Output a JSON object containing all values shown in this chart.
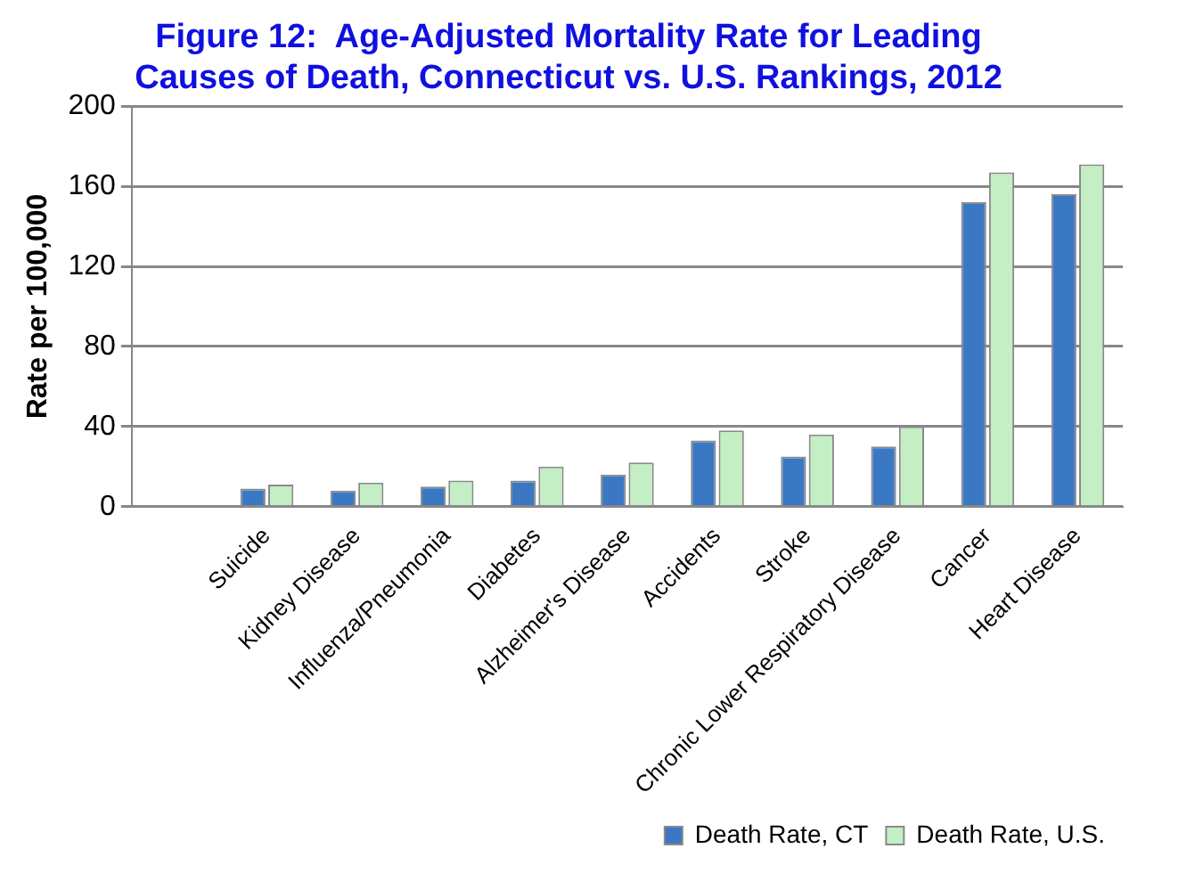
{
  "chart_data": {
    "type": "bar",
    "title": [
      "Figure 12:  Age-Adjusted Mortality Rate for Leading",
      "Causes of Death, Connecticut vs. U.S. Rankings, 2012"
    ],
    "ylabel": "Rate per 100,000",
    "categories": [
      null,
      "Suicide",
      "Kidney Disease",
      "Influenza/Pneumonia",
      "Diabetes",
      "Alzheimer's Disease",
      "Accidents",
      "Stroke",
      "Chronic Lower Respiratory Disease",
      "Cancer",
      "Heart Disease"
    ],
    "series": [
      {
        "name": "Death Rate, CT",
        "color": "#3b78c4",
        "values": [
          null,
          9,
          8,
          10,
          13,
          16,
          33,
          25,
          30,
          152,
          156
        ]
      },
      {
        "name": "Death Rate, U.S.",
        "color": "#c4eec4",
        "values": [
          null,
          11,
          12,
          13,
          20,
          22,
          38,
          36,
          40,
          167,
          171
        ]
      }
    ],
    "ylim": [
      0,
      200
    ],
    "yticks": [
      0,
      40,
      80,
      120,
      160,
      200
    ],
    "grid": "y",
    "legend": "bottom right"
  }
}
